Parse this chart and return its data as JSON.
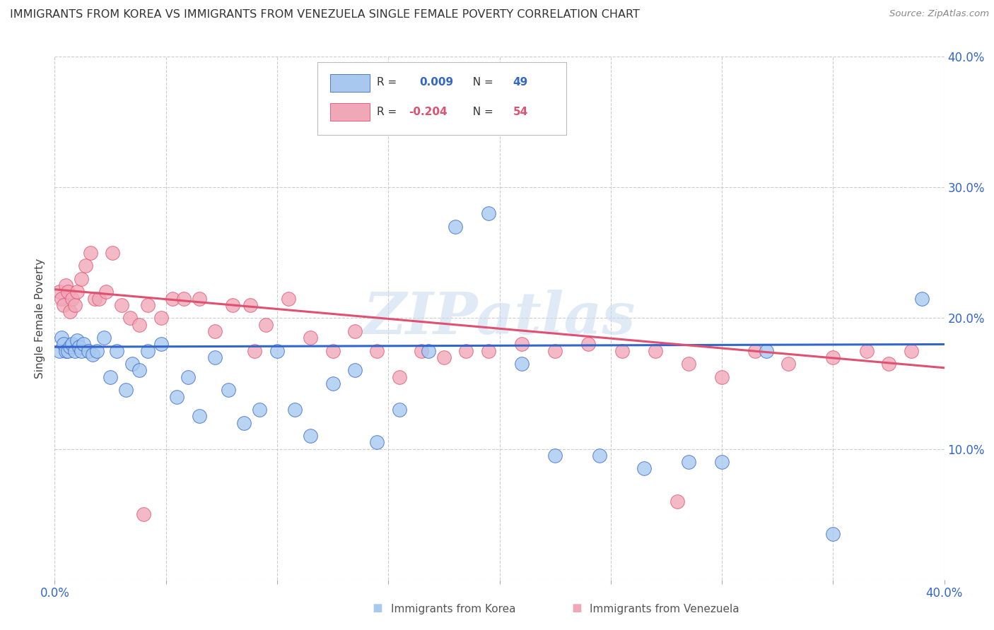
{
  "title": "IMMIGRANTS FROM KOREA VS IMMIGRANTS FROM VENEZUELA SINGLE FEMALE POVERTY CORRELATION CHART",
  "source": "Source: ZipAtlas.com",
  "ylabel": "Single Female Poverty",
  "xlim": [
    0.0,
    0.4
  ],
  "ylim": [
    0.0,
    0.4
  ],
  "legend_label1_pre": "R =  ",
  "legend_label1_val": "0.009",
  "legend_label1_n_pre": "  N = ",
  "legend_label1_n_val": "49",
  "legend_label2_pre": "R = ",
  "legend_label2_val": "-0.204",
  "legend_label2_n_pre": "  N = ",
  "legend_label2_n_val": "54",
  "legend_bottom1": "Immigrants from Korea",
  "legend_bottom2": "Immigrants from Venezuela",
  "watermark": "ZIPatlas",
  "color_korea": "#a8c8f0",
  "color_venezuela": "#f0a8b8",
  "color_line_korea": "#3366cc",
  "color_line_venezuela": "#e05070",
  "korea_x": [
    0.002,
    0.003,
    0.004,
    0.005,
    0.006,
    0.007,
    0.008,
    0.009,
    0.01,
    0.011,
    0.012,
    0.013,
    0.015,
    0.017,
    0.019,
    0.022,
    0.025,
    0.028,
    0.032,
    0.035,
    0.038,
    0.042,
    0.048,
    0.055,
    0.06,
    0.065,
    0.072,
    0.078,
    0.085,
    0.092,
    0.1,
    0.108,
    0.115,
    0.125,
    0.135,
    0.145,
    0.155,
    0.168,
    0.18,
    0.195,
    0.21,
    0.225,
    0.245,
    0.265,
    0.285,
    0.3,
    0.32,
    0.35,
    0.39
  ],
  "korea_y": [
    0.175,
    0.185,
    0.18,
    0.175,
    0.175,
    0.178,
    0.18,
    0.175,
    0.183,
    0.178,
    0.175,
    0.18,
    0.175,
    0.172,
    0.175,
    0.185,
    0.155,
    0.175,
    0.145,
    0.165,
    0.16,
    0.175,
    0.18,
    0.14,
    0.155,
    0.125,
    0.17,
    0.145,
    0.12,
    0.13,
    0.175,
    0.13,
    0.11,
    0.15,
    0.16,
    0.105,
    0.13,
    0.175,
    0.27,
    0.28,
    0.165,
    0.095,
    0.095,
    0.085,
    0.09,
    0.09,
    0.175,
    0.035,
    0.215
  ],
  "venezuela_x": [
    0.002,
    0.003,
    0.004,
    0.005,
    0.006,
    0.007,
    0.008,
    0.009,
    0.01,
    0.012,
    0.014,
    0.016,
    0.018,
    0.02,
    0.023,
    0.026,
    0.03,
    0.034,
    0.038,
    0.042,
    0.048,
    0.053,
    0.058,
    0.065,
    0.072,
    0.08,
    0.088,
    0.095,
    0.105,
    0.115,
    0.125,
    0.135,
    0.145,
    0.155,
    0.165,
    0.175,
    0.185,
    0.195,
    0.21,
    0.225,
    0.24,
    0.255,
    0.27,
    0.285,
    0.3,
    0.315,
    0.33,
    0.35,
    0.365,
    0.375,
    0.385,
    0.04,
    0.09,
    0.28
  ],
  "venezuela_y": [
    0.22,
    0.215,
    0.21,
    0.225,
    0.22,
    0.205,
    0.215,
    0.21,
    0.22,
    0.23,
    0.24,
    0.25,
    0.215,
    0.215,
    0.22,
    0.25,
    0.21,
    0.2,
    0.195,
    0.21,
    0.2,
    0.215,
    0.215,
    0.215,
    0.19,
    0.21,
    0.21,
    0.195,
    0.215,
    0.185,
    0.175,
    0.19,
    0.175,
    0.155,
    0.175,
    0.17,
    0.175,
    0.175,
    0.18,
    0.175,
    0.18,
    0.175,
    0.175,
    0.165,
    0.155,
    0.175,
    0.165,
    0.17,
    0.175,
    0.165,
    0.175,
    0.05,
    0.175,
    0.06
  ],
  "grid_color": "#cccccc",
  "background_color": "#ffffff",
  "korea_line_y0": 0.178,
  "korea_line_y1": 0.18,
  "venezuela_line_y0": 0.222,
  "venezuela_line_y1": 0.162
}
